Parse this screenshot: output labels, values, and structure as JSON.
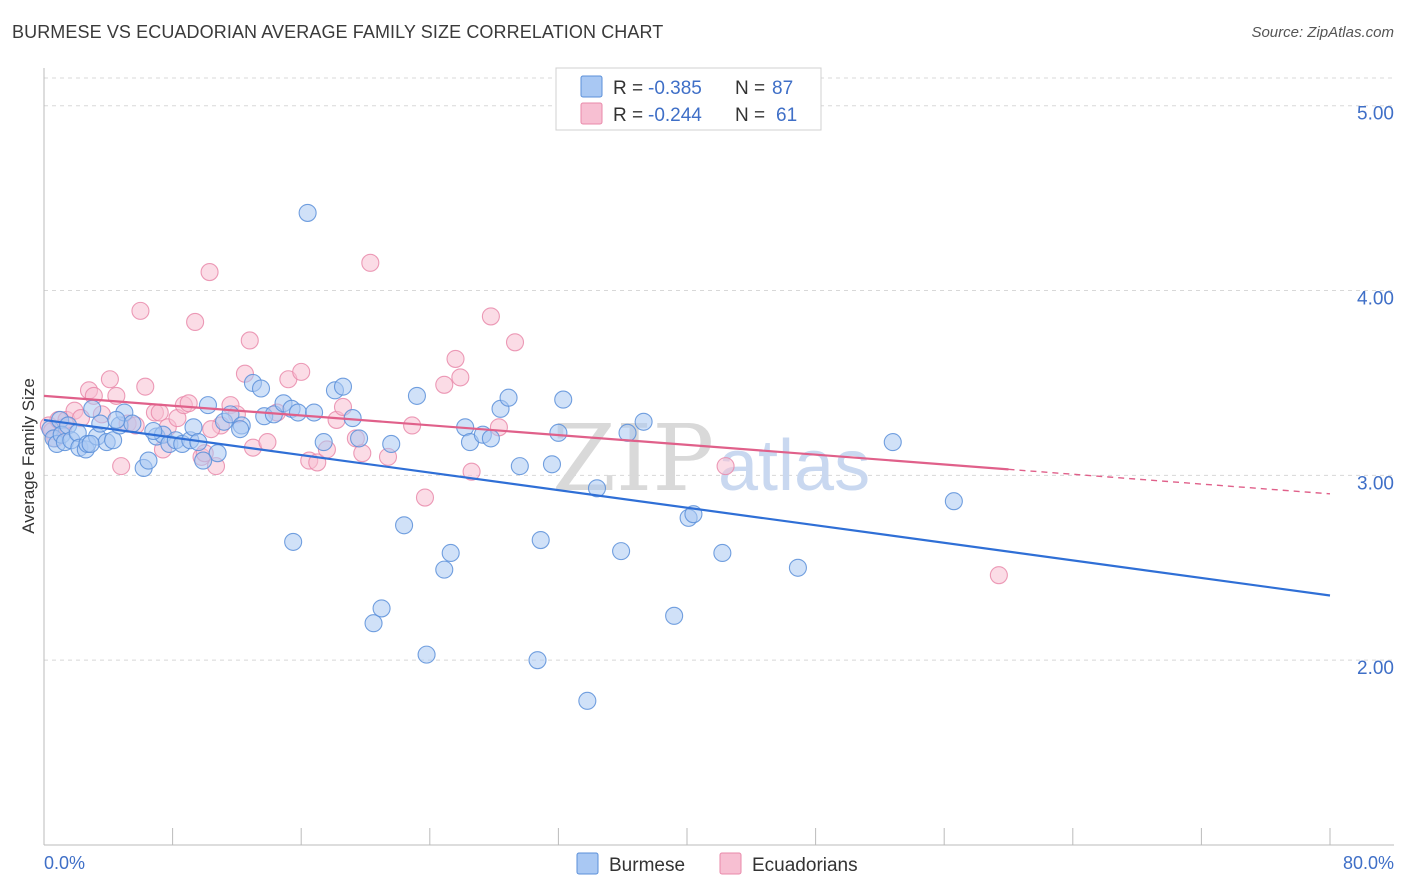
{
  "title": "BURMESE VS ECUADORIAN AVERAGE FAMILY SIZE CORRELATION CHART",
  "source": "Source: ZipAtlas.com",
  "watermark": {
    "zip": "ZIP",
    "atlas": "atlas"
  },
  "colors": {
    "burmese_fill": "#a9c8f3",
    "burmese_stroke": "#5b8fd9",
    "burmese_line": "#2f6fd6",
    "ecuadorian_fill": "#f7bfd2",
    "ecuadorian_stroke": "#e98aaa",
    "ecuadorian_line": "#e0608a",
    "grid": "#d8d8d8",
    "axis_text": "#3f6fc7"
  },
  "chart_data": {
    "type": "scatter",
    "title": "BURMESE VS ECUADORIAN AVERAGE FAMILY SIZE CORRELATION CHART",
    "xlabel": "",
    "ylabel": "Average Family Size",
    "xlim": [
      0,
      80
    ],
    "ylim": [
      1.0,
      5.15
    ],
    "x_tick_labels": [
      "0.0%",
      "80.0%"
    ],
    "y_ticks": [
      2.0,
      3.0,
      4.0,
      5.0
    ],
    "y_tick_labels": [
      "2.00",
      "3.00",
      "4.00",
      "5.00"
    ],
    "grid": true,
    "legend": [
      {
        "name": "Burmese",
        "r_label": "R =",
        "r_value": "-0.385",
        "n_label": "N =",
        "n_value": "87"
      },
      {
        "name": "Ecuadorians",
        "r_label": "R =",
        "r_value": "-0.244",
        "n_label": "N =",
        "n_value": "61"
      }
    ],
    "series": [
      {
        "name": "Burmese",
        "trend": {
          "x0": 0,
          "y0": 3.3,
          "x1": 80,
          "y1": 2.35,
          "solid_until": 80
        },
        "points": [
          [
            0.4,
            3.25
          ],
          [
            0.6,
            3.2
          ],
          [
            0.8,
            3.17
          ],
          [
            1.0,
            3.3
          ],
          [
            1.1,
            3.22
          ],
          [
            1.3,
            3.18
          ],
          [
            1.5,
            3.27
          ],
          [
            1.7,
            3.19
          ],
          [
            2.1,
            3.23
          ],
          [
            2.2,
            3.15
          ],
          [
            2.6,
            3.14
          ],
          [
            2.7,
            3.17
          ],
          [
            3.0,
            3.36
          ],
          [
            3.3,
            3.21
          ],
          [
            3.5,
            3.28
          ],
          [
            3.9,
            3.18
          ],
          [
            4.3,
            3.19
          ],
          [
            4.7,
            3.27
          ],
          [
            5.0,
            3.34
          ],
          [
            5.5,
            3.28
          ],
          [
            6.2,
            3.04
          ],
          [
            6.5,
            3.08
          ],
          [
            7.0,
            3.21
          ],
          [
            7.4,
            3.22
          ],
          [
            7.8,
            3.17
          ],
          [
            8.2,
            3.19
          ],
          [
            8.6,
            3.17
          ],
          [
            9.1,
            3.19
          ],
          [
            9.3,
            3.26
          ],
          [
            9.6,
            3.18
          ],
          [
            10.2,
            3.38
          ],
          [
            10.8,
            3.12
          ],
          [
            11.2,
            3.29
          ],
          [
            11.6,
            3.33
          ],
          [
            12.3,
            3.27
          ],
          [
            13.0,
            3.5
          ],
          [
            13.5,
            3.47
          ],
          [
            13.7,
            3.32
          ],
          [
            14.3,
            3.33
          ],
          [
            14.9,
            3.39
          ],
          [
            15.4,
            3.36
          ],
          [
            15.8,
            3.34
          ],
          [
            16.4,
            4.42
          ],
          [
            16.8,
            3.34
          ],
          [
            17.4,
            3.18
          ],
          [
            18.1,
            3.46
          ],
          [
            18.6,
            3.48
          ],
          [
            19.2,
            3.31
          ],
          [
            19.6,
            3.2
          ],
          [
            20.5,
            2.2
          ],
          [
            21.0,
            2.28
          ],
          [
            21.6,
            3.17
          ],
          [
            22.4,
            2.73
          ],
          [
            23.2,
            3.43
          ],
          [
            23.8,
            2.03
          ],
          [
            24.9,
            2.49
          ],
          [
            25.3,
            2.58
          ],
          [
            26.2,
            3.26
          ],
          [
            26.5,
            3.18
          ],
          [
            27.3,
            3.22
          ],
          [
            27.8,
            3.2
          ],
          [
            28.4,
            3.36
          ],
          [
            28.9,
            3.42
          ],
          [
            29.6,
            3.05
          ],
          [
            30.7,
            2.0
          ],
          [
            30.9,
            2.65
          ],
          [
            31.6,
            3.06
          ],
          [
            32.0,
            3.23
          ],
          [
            32.3,
            3.41
          ],
          [
            33.8,
            1.78
          ],
          [
            34.4,
            2.93
          ],
          [
            35.9,
            2.59
          ],
          [
            36.3,
            3.23
          ],
          [
            37.3,
            3.29
          ],
          [
            39.2,
            2.24
          ],
          [
            40.1,
            2.77
          ],
          [
            40.4,
            2.79
          ],
          [
            42.2,
            2.58
          ],
          [
            46.9,
            2.5
          ],
          [
            52.8,
            3.18
          ],
          [
            56.6,
            2.86
          ],
          [
            15.5,
            2.64
          ],
          [
            4.5,
            3.3
          ],
          [
            12.2,
            3.25
          ],
          [
            9.9,
            3.08
          ],
          [
            6.8,
            3.24
          ],
          [
            2.9,
            3.17
          ]
        ]
      },
      {
        "name": "Ecuadorians",
        "trend": {
          "x0": 0,
          "y0": 3.43,
          "x1": 80,
          "y1": 2.9,
          "solid_until": 60
        },
        "points": [
          [
            0.3,
            3.27
          ],
          [
            0.5,
            3.24
          ],
          [
            0.7,
            3.2
          ],
          [
            0.9,
            3.3
          ],
          [
            1.2,
            3.26
          ],
          [
            1.4,
            3.3
          ],
          [
            1.9,
            3.35
          ],
          [
            2.3,
            3.31
          ],
          [
            2.8,
            3.46
          ],
          [
            3.1,
            3.43
          ],
          [
            3.6,
            3.33
          ],
          [
            4.1,
            3.52
          ],
          [
            4.5,
            3.43
          ],
          [
            4.8,
            3.05
          ],
          [
            5.2,
            3.28
          ],
          [
            5.7,
            3.27
          ],
          [
            6.0,
            3.89
          ],
          [
            6.3,
            3.48
          ],
          [
            6.9,
            3.34
          ],
          [
            7.2,
            3.34
          ],
          [
            7.7,
            3.26
          ],
          [
            8.3,
            3.31
          ],
          [
            8.7,
            3.38
          ],
          [
            9.0,
            3.39
          ],
          [
            9.4,
            3.83
          ],
          [
            9.8,
            3.1
          ],
          [
            10.0,
            3.12
          ],
          [
            10.3,
            4.1
          ],
          [
            10.7,
            3.05
          ],
          [
            11.0,
            3.27
          ],
          [
            11.6,
            3.38
          ],
          [
            12.0,
            3.33
          ],
          [
            12.5,
            3.55
          ],
          [
            12.8,
            3.73
          ],
          [
            13.0,
            3.15
          ],
          [
            13.9,
            3.18
          ],
          [
            14.5,
            3.34
          ],
          [
            15.2,
            3.52
          ],
          [
            16.0,
            3.56
          ],
          [
            16.5,
            3.08
          ],
          [
            17.0,
            3.07
          ],
          [
            17.6,
            3.14
          ],
          [
            18.2,
            3.3
          ],
          [
            18.6,
            3.37
          ],
          [
            19.4,
            3.2
          ],
          [
            19.8,
            3.12
          ],
          [
            20.3,
            4.15
          ],
          [
            21.4,
            3.1
          ],
          [
            22.9,
            3.27
          ],
          [
            23.7,
            2.88
          ],
          [
            24.9,
            3.49
          ],
          [
            25.6,
            3.63
          ],
          [
            25.9,
            3.53
          ],
          [
            26.6,
            3.02
          ],
          [
            27.8,
            3.86
          ],
          [
            28.3,
            3.26
          ],
          [
            29.3,
            3.72
          ],
          [
            42.4,
            3.05
          ],
          [
            59.4,
            2.46
          ],
          [
            10.4,
            3.25
          ],
          [
            7.4,
            3.14
          ]
        ]
      }
    ]
  }
}
